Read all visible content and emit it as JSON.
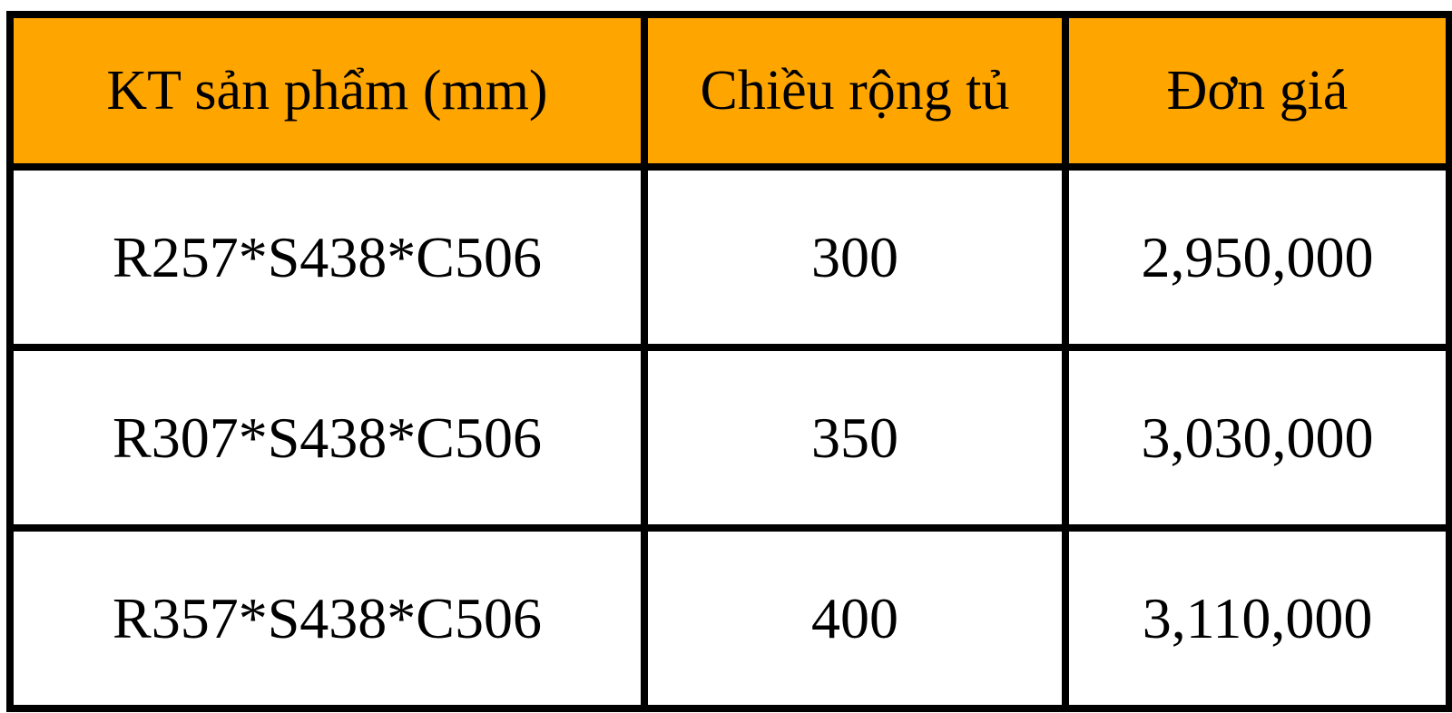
{
  "colors": {
    "header_bg": "#ffa500",
    "border": "#000000",
    "text": "#000000",
    "page_bg": "#ffffff"
  },
  "table": {
    "headers": [
      "KT sản phẩm (mm)",
      "Chiều rộng tủ",
      "Đơn giá"
    ],
    "rows": [
      [
        "R257*S438*C506",
        "300",
        "2,950,000"
      ],
      [
        "R307*S438*C506",
        "350",
        "3,030,000"
      ],
      [
        "R357*S438*C506",
        "400",
        "3,110,000"
      ]
    ]
  },
  "chart_data": {
    "type": "table",
    "title": "",
    "columns": [
      "KT sản phẩm (mm)",
      "Chiều rộng tủ",
      "Đơn giá"
    ],
    "rows": [
      {
        "kt_san_pham": "R257*S438*C506",
        "chieu_rong_tu": 300,
        "don_gia": 2950000
      },
      {
        "kt_san_pham": "R307*S438*C506",
        "chieu_rong_tu": 350,
        "don_gia": 3030000
      },
      {
        "kt_san_pham": "R357*S438*C506",
        "chieu_rong_tu": 400,
        "don_gia": 3110000
      }
    ]
  }
}
